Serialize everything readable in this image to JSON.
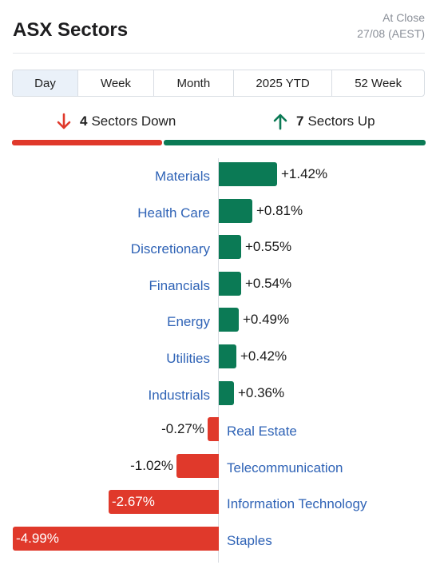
{
  "header": {
    "title": "ASX Sectors",
    "status": "At Close",
    "date": "27/08 (AEST)"
  },
  "tabs": [
    {
      "label": "Day",
      "active": true
    },
    {
      "label": "Week",
      "active": false
    },
    {
      "label": "Month",
      "active": false
    },
    {
      "label": "2025 YTD",
      "active": false
    },
    {
      "label": "52 Week",
      "active": false
    }
  ],
  "summary": {
    "down": {
      "count": "4",
      "text": "Sectors Down",
      "icon": "arrow-down-icon",
      "color": "#e0392b"
    },
    "up": {
      "count": "7",
      "text": "Sectors Up",
      "icon": "arrow-up-icon",
      "color": "#0b7a55"
    }
  },
  "colors": {
    "positive": "#0b7a55",
    "negative": "#e0392b",
    "link": "#2f63b6"
  },
  "chart_data": {
    "type": "bar",
    "categories": [
      "Materials",
      "Health Care",
      "Discretionary",
      "Financials",
      "Energy",
      "Utilities",
      "Industrials",
      "Real Estate",
      "Telecommunication",
      "Information Technology",
      "Staples"
    ],
    "values": [
      1.42,
      0.81,
      0.55,
      0.54,
      0.49,
      0.42,
      0.36,
      -0.27,
      -1.02,
      -2.67,
      -4.99
    ],
    "value_labels": [
      "+1.42%",
      "+0.81%",
      "+0.55%",
      "+0.54%",
      "+0.49%",
      "+0.42%",
      "+0.36%",
      "-0.27%",
      "-1.02%",
      "-2.67%",
      "-4.99%"
    ]
  }
}
